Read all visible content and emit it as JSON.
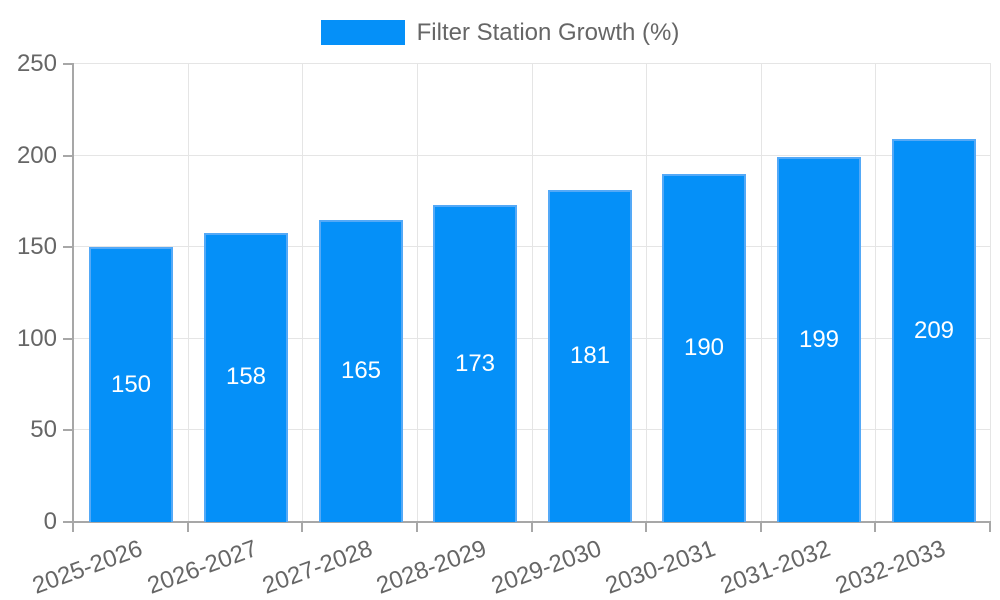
{
  "chart_data": {
    "type": "bar",
    "title": "",
    "legend_label": "Filter Station Growth (%)",
    "legend_position": "top",
    "categories": [
      "2025-2026",
      "2026-2027",
      "2027-2028",
      "2028-2029",
      "2029-2030",
      "2030-2031",
      "2031-2032",
      "2032-2033"
    ],
    "values": [
      150,
      158,
      165,
      173,
      181,
      190,
      199,
      209
    ],
    "value_labels_shown": true,
    "xlabel": "",
    "ylabel": "",
    "ylim": [
      0,
      250
    ],
    "yticks": [
      0,
      50,
      100,
      150,
      200,
      250
    ],
    "grid": true,
    "x_label_rotation_deg": -20,
    "colors": {
      "bar_fill": "#0590F8",
      "bar_border": "#54A9F7",
      "value_label": "#FFFFFF",
      "axis_line": "#A7A7A7",
      "gridline": "#E5E5E5",
      "tick_label": "#666666",
      "legend_text": "#666666",
      "background": "#FFFFFF"
    }
  }
}
